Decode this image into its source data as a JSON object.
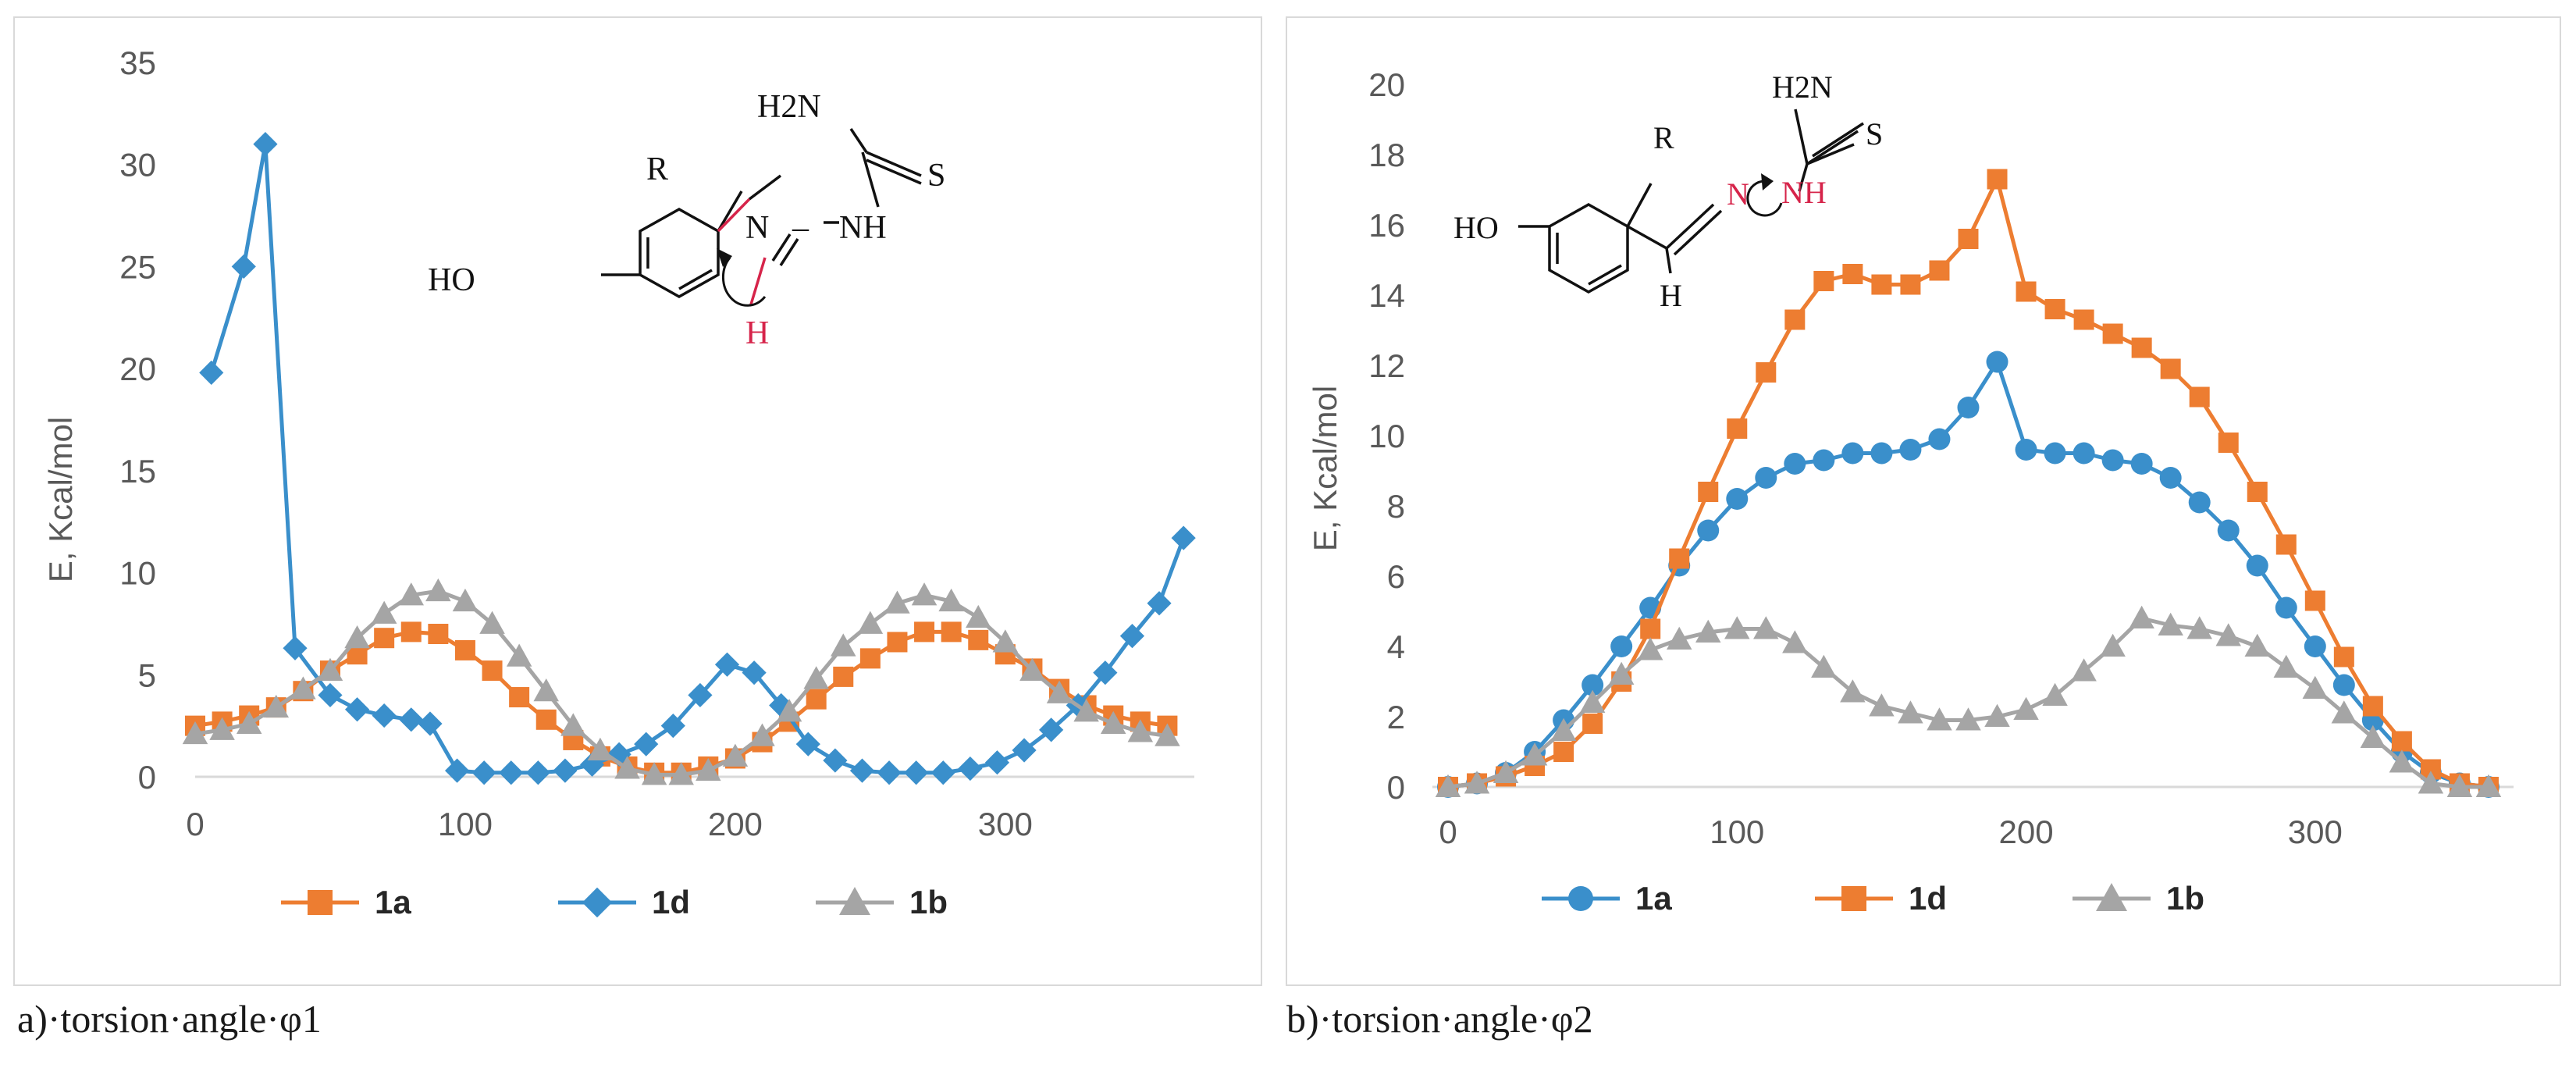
{
  "chart_data": [
    {
      "type": "line",
      "caption": "a)·torsion·angle·φ1",
      "ylabel": "E, Kcal/mol",
      "xlabel": "",
      "xlim": [
        0,
        370
      ],
      "ylim": [
        0,
        35
      ],
      "xticks": [
        "0",
        "100",
        "200",
        "300"
      ],
      "yticks": [
        "0",
        "5",
        "10",
        "15",
        "20",
        "25",
        "30",
        "35"
      ],
      "grid": false,
      "legend": [
        "1a",
        "1d",
        "1b"
      ],
      "series": [
        {
          "name": "1a",
          "color": "#ED7D31",
          "marker": "square",
          "x": [
            0,
            10,
            20,
            30,
            40,
            50,
            60,
            70,
            80,
            90,
            100,
            110,
            120,
            130,
            140,
            150,
            160,
            170,
            180,
            190,
            200,
            210,
            220,
            230,
            240,
            250,
            260,
            270,
            280,
            290,
            300,
            310,
            320,
            330,
            340,
            350,
            360
          ],
          "y": [
            2.5,
            2.7,
            3.0,
            3.4,
            4.2,
            5.2,
            6.0,
            6.8,
            7.1,
            7.0,
            6.2,
            5.2,
            3.9,
            2.8,
            1.8,
            1.0,
            0.5,
            0.2,
            0.2,
            0.5,
            0.9,
            1.7,
            2.7,
            3.8,
            4.9,
            5.8,
            6.6,
            7.1,
            7.1,
            6.7,
            6.0,
            5.3,
            4.3,
            3.5,
            3.0,
            2.7,
            2.5
          ]
        },
        {
          "name": "1d",
          "color": "#3A8FCB",
          "marker": "diamond",
          "x": [
            6,
            18,
            26,
            37,
            50,
            60,
            70,
            80,
            87,
            97,
            107,
            117,
            127,
            137,
            147,
            157,
            167,
            177,
            187,
            197,
            207,
            217,
            227,
            237,
            247,
            257,
            267,
            277,
            287,
            297,
            307,
            317,
            327,
            337,
            347,
            357,
            366
          ],
          "y": [
            19.8,
            25.0,
            31.0,
            6.3,
            4.0,
            3.3,
            3.0,
            2.8,
            2.6,
            0.3,
            0.2,
            0.2,
            0.2,
            0.3,
            0.6,
            1.1,
            1.6,
            2.5,
            4.0,
            5.5,
            5.1,
            3.5,
            1.6,
            0.8,
            0.3,
            0.2,
            0.2,
            0.2,
            0.4,
            0.7,
            1.3,
            2.3,
            3.5,
            5.1,
            6.9,
            8.5,
            11.7
          ]
        },
        {
          "name": "1b",
          "color": "#A5A5A5",
          "marker": "triangle",
          "x": [
            0,
            10,
            20,
            30,
            40,
            50,
            60,
            70,
            80,
            90,
            100,
            110,
            120,
            130,
            140,
            150,
            160,
            170,
            180,
            190,
            200,
            210,
            220,
            230,
            240,
            250,
            260,
            270,
            280,
            290,
            300,
            310,
            320,
            330,
            340,
            350,
            360
          ],
          "y": [
            2.1,
            2.3,
            2.6,
            3.4,
            4.3,
            5.2,
            6.8,
            8.0,
            8.9,
            9.1,
            8.6,
            7.5,
            5.9,
            4.2,
            2.5,
            1.3,
            0.4,
            0.1,
            0.1,
            0.3,
            1.0,
            2.0,
            3.2,
            4.8,
            6.4,
            7.5,
            8.5,
            8.9,
            8.6,
            7.8,
            6.6,
            5.2,
            4.1,
            3.2,
            2.6,
            2.2,
            2.0
          ]
        }
      ]
    },
    {
      "type": "line",
      "caption": "b)·torsion·angle·φ2",
      "ylabel": "E, Kcal/mol",
      "xlabel": "",
      "xlim": [
        0,
        370
      ],
      "ylim": [
        0,
        20
      ],
      "xticks": [
        "0",
        "100",
        "200",
        "300"
      ],
      "yticks": [
        "0",
        "2",
        "4",
        "6",
        "8",
        "10",
        "12",
        "14",
        "16",
        "18",
        "20"
      ],
      "grid": false,
      "legend": [
        "1a",
        "1d",
        "1b"
      ],
      "series": [
        {
          "name": "1a",
          "color": "#3A8FCB",
          "marker": "circle",
          "x": [
            0,
            10,
            20,
            30,
            40,
            50,
            60,
            70,
            80,
            90,
            100,
            110,
            120,
            130,
            140,
            150,
            160,
            170,
            180,
            190,
            200,
            210,
            220,
            230,
            240,
            250,
            260,
            270,
            280,
            290,
            300,
            310,
            320,
            330,
            340,
            350,
            360
          ],
          "y": [
            0,
            0.1,
            0.4,
            1.0,
            1.9,
            2.9,
            4.0,
            5.1,
            6.3,
            7.3,
            8.2,
            8.8,
            9.2,
            9.3,
            9.5,
            9.5,
            9.6,
            9.9,
            10.8,
            12.1,
            9.6,
            9.5,
            9.5,
            9.3,
            9.2,
            8.8,
            8.1,
            7.3,
            6.3,
            5.1,
            4.0,
            2.9,
            1.9,
            1.0,
            0.4,
            0.1,
            0
          ]
        },
        {
          "name": "1d",
          "color": "#ED7D31",
          "marker": "square",
          "x": [
            0,
            10,
            20,
            30,
            40,
            50,
            60,
            70,
            80,
            90,
            100,
            110,
            120,
            130,
            140,
            150,
            160,
            170,
            180,
            190,
            200,
            210,
            220,
            230,
            240,
            250,
            260,
            270,
            280,
            290,
            300,
            310,
            320,
            330,
            340,
            350,
            360
          ],
          "y": [
            0,
            0.1,
            0.3,
            0.6,
            1.0,
            1.8,
            3.0,
            4.5,
            6.5,
            8.4,
            10.2,
            11.8,
            13.3,
            14.4,
            14.6,
            14.3,
            14.3,
            14.7,
            15.6,
            17.3,
            14.1,
            13.6,
            13.3,
            12.9,
            12.5,
            11.9,
            11.1,
            9.8,
            8.4,
            6.9,
            5.3,
            3.7,
            2.3,
            1.3,
            0.5,
            0.1,
            0
          ]
        },
        {
          "name": "1b",
          "color": "#A5A5A5",
          "marker": "triangle",
          "x": [
            0,
            10,
            20,
            30,
            40,
            50,
            60,
            70,
            80,
            90,
            100,
            110,
            120,
            130,
            140,
            150,
            160,
            170,
            180,
            190,
            200,
            210,
            220,
            230,
            240,
            250,
            260,
            270,
            280,
            290,
            300,
            310,
            320,
            330,
            340,
            350,
            360
          ],
          "y": [
            0,
            0.1,
            0.4,
            0.9,
            1.6,
            2.4,
            3.2,
            3.9,
            4.2,
            4.4,
            4.5,
            4.5,
            4.1,
            3.4,
            2.7,
            2.3,
            2.1,
            1.9,
            1.9,
            2.0,
            2.2,
            2.6,
            3.3,
            4.0,
            4.8,
            4.6,
            4.5,
            4.3,
            4.0,
            3.4,
            2.8,
            2.1,
            1.4,
            0.7,
            0.1,
            0.0,
            0.0
          ]
        }
      ]
    }
  ],
  "structures": {
    "a": {
      "amine": "H2N",
      "sulfur": "S",
      "substituent": "R",
      "hydroxyl": "HO",
      "imine_n": "N",
      "dash": "–",
      "hydrazine_nh": "NH",
      "hydrogen": "H"
    },
    "b": {
      "amine": "H2N",
      "sulfur": "S",
      "substituent": "R",
      "hydroxyl": "HO",
      "imine_n": "N",
      "hydrazine_nh": "NH",
      "hydrogen": "H"
    }
  }
}
